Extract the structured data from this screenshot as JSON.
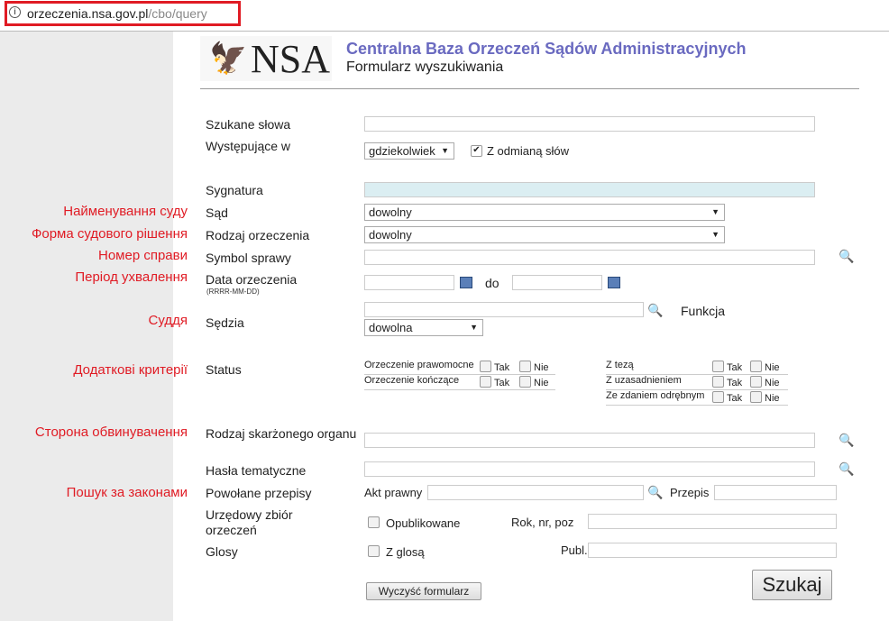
{
  "browser": {
    "url_domain": "orzeczenia.nsa.gov.pl",
    "url_path": "/cbo/query"
  },
  "header": {
    "logo_text": "NSA",
    "title": "Centralna Baza Orzeczeń Sądów Administracyjnych",
    "subtitle": "Formularz wyszukiwania"
  },
  "annotations": [
    "Найменування суду",
    "Форма судового рішення",
    "Номер справи",
    "Період ухвалення",
    "Суддя",
    "Додаткові критерії",
    "Сторона обвинувачення",
    "Пошук за законами"
  ],
  "form": {
    "search_words": {
      "label": "Szukane słowa",
      "value": ""
    },
    "occurs_in": {
      "label": "Występujące w",
      "selected": "gdziekolwiek",
      "inflection_label": "Z odmianą słów",
      "inflection_checked": true
    },
    "signature": {
      "label": "Sygnatura",
      "value": ""
    },
    "court": {
      "label": "Sąd",
      "selected": "dowolny"
    },
    "ruling_type": {
      "label": "Rodzaj orzeczenia",
      "selected": "dowolny"
    },
    "case_symbol": {
      "label": "Symbol sprawy",
      "value": ""
    },
    "date": {
      "label": "Data orzeczenia",
      "hint": "(RRRR-MM-DD)",
      "to_label": "do"
    },
    "judge": {
      "label": "Sędzia",
      "function_label": "Funkcja",
      "function_selected": "dowolna"
    },
    "status": {
      "label": "Status",
      "yes": "Tak",
      "no": "Nie",
      "left": [
        "Orzeczenie prawomocne",
        "Orzeczenie kończące"
      ],
      "right": [
        "Z tezą",
        "Z uzasadnieniem",
        "Ze zdaniem odrębnym"
      ]
    },
    "authority_type": {
      "label": "Rodzaj skarżonego organu"
    },
    "keywords": {
      "label": "Hasła tematyczne"
    },
    "cited": {
      "label": "Powołane przepisy",
      "act_label": "Akt prawny",
      "provision_label": "Przepis"
    },
    "official": {
      "label": "Urzędowy zbiór orzeczeń",
      "published_label": "Opublikowane",
      "rok_label": "Rok, nr, poz"
    },
    "glosses": {
      "label": "Glosy",
      "with_label": "Z glosą",
      "publ_label": "Publ."
    },
    "clear_button": "Wyczyść formularz",
    "search_button": "Szukaj"
  }
}
